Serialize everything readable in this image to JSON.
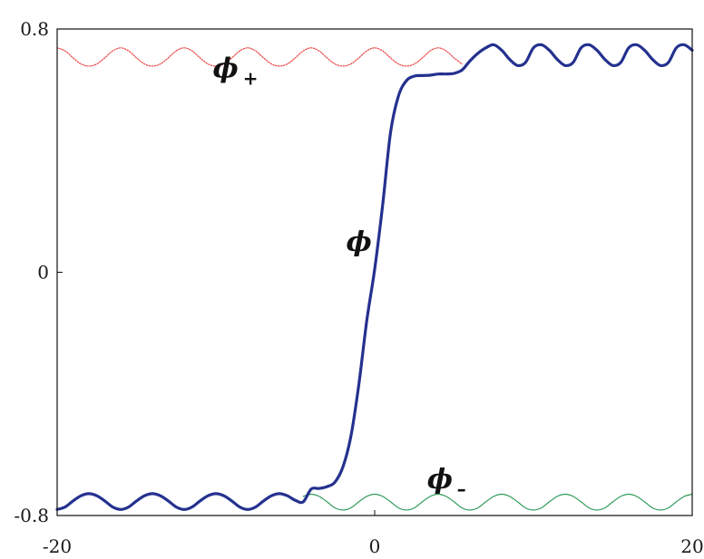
{
  "chart_data": {
    "type": "line",
    "title": "",
    "xlabel": "",
    "ylabel": "",
    "xlim": [
      -20,
      20
    ],
    "ylim": [
      -0.8,
      0.8
    ],
    "x_ticks": [
      -20,
      0,
      20
    ],
    "x_tick_labels": [
      "-20",
      "0",
      "20"
    ],
    "y_ticks": [
      -0.8,
      0,
      0.8
    ],
    "y_tick_labels": [
      "-0.8",
      "0",
      "0.8"
    ],
    "grid": false,
    "legend": "none",
    "annotations": [
      {
        "text": "ϕ",
        "sub": "+",
        "x": -10.2,
        "y": 0.64,
        "target": "phi_plus"
      },
      {
        "text": "ϕ",
        "sub": "",
        "x": -1.8,
        "y": 0.07,
        "target": "phi"
      },
      {
        "text": "ϕ",
        "sub": "–",
        "x": 3.3,
        "y": -0.71,
        "target": "phi_minus"
      }
    ],
    "series": [
      {
        "key": "phi",
        "color": "#24318f",
        "style": "solid",
        "x": [
          -20,
          -19.5,
          -19,
          -18.5,
          -18,
          -17.5,
          -17,
          -16.5,
          -16,
          -15.5,
          -15,
          -14.5,
          -14,
          -13.5,
          -13,
          -12.5,
          -12,
          -11.5,
          -11,
          -10.5,
          -10,
          -9.5,
          -9,
          -8.5,
          -8,
          -7.5,
          -7,
          -6.5,
          -6,
          -5.5,
          -5,
          -4.5,
          -4,
          -3.5,
          -3,
          -2.5,
          -2,
          -1.5,
          -1,
          -0.5,
          0,
          0.5,
          1,
          1.5,
          2,
          2.5,
          3,
          3.5,
          4,
          4.5,
          5,
          5.5,
          6,
          6.5,
          7,
          7.5,
          8,
          8.5,
          9,
          9.5,
          10,
          10.5,
          11,
          11.5,
          12,
          12.5,
          13,
          13.5,
          14,
          14.5,
          15,
          15.5,
          16,
          16.5,
          17,
          17.5,
          18,
          18.5,
          19,
          19.5,
          20
        ],
        "y": [
          -0.78,
          -0.772,
          -0.752,
          -0.735,
          -0.728,
          -0.735,
          -0.752,
          -0.772,
          -0.78,
          -0.772,
          -0.752,
          -0.735,
          -0.728,
          -0.735,
          -0.752,
          -0.772,
          -0.78,
          -0.772,
          -0.752,
          -0.735,
          -0.728,
          -0.735,
          -0.752,
          -0.772,
          -0.78,
          -0.772,
          -0.752,
          -0.735,
          -0.728,
          -0.735,
          -0.75,
          -0.755,
          -0.713,
          -0.711,
          -0.705,
          -0.69,
          -0.64,
          -0.54,
          -0.37,
          -0.16,
          0.01,
          0.22,
          0.46,
          0.58,
          0.63,
          0.645,
          0.647,
          0.648,
          0.652,
          0.652,
          0.654,
          0.665,
          0.695,
          0.72,
          0.738,
          0.748,
          0.73,
          0.7,
          0.68,
          0.69,
          0.738,
          0.748,
          0.73,
          0.7,
          0.68,
          0.69,
          0.738,
          0.748,
          0.73,
          0.7,
          0.68,
          0.69,
          0.738,
          0.748,
          0.73,
          0.7,
          0.68,
          0.69,
          0.738,
          0.748,
          0.73
        ]
      },
      {
        "key": "phi_plus",
        "color": "#e8433f",
        "style": "dotted",
        "x": [
          -20,
          -19.5,
          -19,
          -18.5,
          -18,
          -17.5,
          -17,
          -16.5,
          -16,
          -15.5,
          -15,
          -14.5,
          -14,
          -13.5,
          -13,
          -12.5,
          -12,
          -11.5,
          -11,
          -10.5,
          -10,
          -9.5,
          -9,
          -8.5,
          -8,
          -7.5,
          -7,
          -6.5,
          -6,
          -5.5,
          -5,
          -4.5,
          -4,
          -3.5,
          -3,
          -2.5,
          -2,
          -1.5,
          -1,
          -0.5,
          0,
          0.5,
          1,
          1.5,
          2,
          2.5,
          3,
          3.5,
          4,
          4.5,
          5,
          5.5
        ],
        "y": [
          0.738,
          0.728,
          0.705,
          0.685,
          0.678,
          0.685,
          0.705,
          0.728,
          0.738,
          0.728,
          0.705,
          0.685,
          0.678,
          0.685,
          0.705,
          0.728,
          0.738,
          0.728,
          0.705,
          0.685,
          0.678,
          0.685,
          0.705,
          0.728,
          0.738,
          0.728,
          0.705,
          0.685,
          0.678,
          0.685,
          0.705,
          0.728,
          0.738,
          0.728,
          0.705,
          0.685,
          0.678,
          0.685,
          0.705,
          0.728,
          0.738,
          0.728,
          0.705,
          0.685,
          0.678,
          0.685,
          0.705,
          0.728,
          0.738,
          0.728,
          0.705,
          0.685
        ]
      },
      {
        "key": "phi_minus",
        "color": "#2f9a5a",
        "style": "solid",
        "x": [
          -4.5,
          -4,
          -3.5,
          -3,
          -2.5,
          -2,
          -1.5,
          -1,
          -0.5,
          0,
          0.5,
          1,
          1.5,
          2,
          2.5,
          3,
          3.5,
          4,
          4.5,
          5,
          5.5,
          6,
          6.5,
          7,
          7.5,
          8,
          8.5,
          9,
          9.5,
          10,
          10.5,
          11,
          11.5,
          12,
          12.5,
          13,
          13.5,
          14,
          14.5,
          15,
          15.5,
          16,
          16.5,
          17,
          17.5,
          18,
          18.5,
          19,
          19.5,
          20
        ],
        "y": [
          -0.737,
          -0.73,
          -0.737,
          -0.755,
          -0.775,
          -0.782,
          -0.775,
          -0.755,
          -0.737,
          -0.73,
          -0.737,
          -0.755,
          -0.775,
          -0.782,
          -0.775,
          -0.755,
          -0.737,
          -0.73,
          -0.737,
          -0.755,
          -0.775,
          -0.782,
          -0.775,
          -0.755,
          -0.737,
          -0.73,
          -0.737,
          -0.755,
          -0.775,
          -0.782,
          -0.775,
          -0.755,
          -0.737,
          -0.73,
          -0.737,
          -0.755,
          -0.775,
          -0.782,
          -0.775,
          -0.755,
          -0.737,
          -0.73,
          -0.737,
          -0.755,
          -0.775,
          -0.782,
          -0.775,
          -0.755,
          -0.737,
          -0.73
        ]
      }
    ]
  }
}
